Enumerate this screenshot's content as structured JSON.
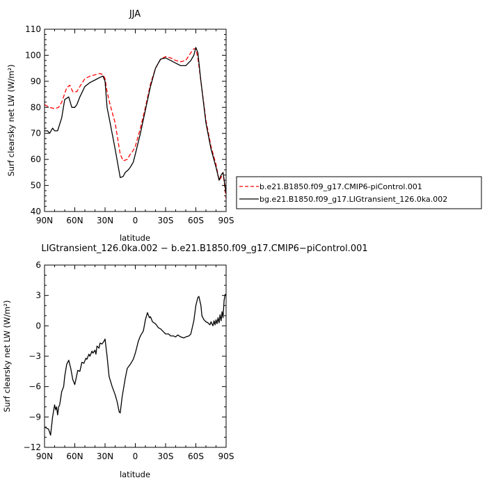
{
  "chart_data": [
    {
      "type": "line",
      "title": "JJA",
      "xlabel": "latitude",
      "ylabel": "Surf clearsky net LW (W/m²)",
      "xlim": [
        90,
        -90
      ],
      "ylim": [
        40,
        110
      ],
      "x_ticks": [
        90,
        60,
        30,
        0,
        -30,
        -60,
        -90
      ],
      "x_tick_labels": [
        "90N",
        "60N",
        "30N",
        "0",
        "30S",
        "60S",
        "90S"
      ],
      "y_ticks": [
        40,
        50,
        60,
        70,
        80,
        90,
        100,
        110
      ],
      "y_tick_labels": [
        "40",
        "50",
        "60",
        "70",
        "80",
        "90",
        "100",
        "110"
      ],
      "legend_position": "right",
      "series": [
        {
          "name": "b.e21.B1850.f09_g17.CMIP6-piControl.001",
          "color": "#ff0000",
          "dash": "dashed",
          "x": [
            90,
            85,
            80,
            76,
            73,
            68,
            65,
            62,
            58,
            55,
            50,
            45,
            40,
            35,
            32,
            30,
            28,
            25,
            20,
            15,
            12,
            8,
            5,
            2,
            0,
            -5,
            -10,
            -15,
            -20,
            -25,
            -30,
            -35,
            -40,
            -45,
            -50,
            -55,
            -58,
            -60,
            -62,
            -65,
            -70,
            -75,
            -80,
            -83,
            -85,
            -87,
            -90
          ],
          "y": [
            81,
            80,
            79.5,
            80,
            82,
            87.5,
            88.5,
            86,
            86,
            88,
            91,
            92,
            92.5,
            93,
            92.5,
            91,
            86,
            81,
            74,
            62,
            59.5,
            60,
            62,
            63.5,
            65,
            72,
            80,
            89,
            95,
            98.5,
            99.5,
            99,
            98,
            97.5,
            98,
            101,
            102.5,
            102.5,
            99,
            90,
            75,
            65,
            58,
            52,
            53,
            55,
            45
          ]
        },
        {
          "name": "bg.e21.B1850.f09_g17.LIGtransient_126.0ka.002",
          "color": "#000000",
          "dash": "solid",
          "x": [
            90,
            87,
            85,
            82,
            80,
            77,
            73,
            70,
            66,
            63,
            60,
            58,
            55,
            50,
            45,
            40,
            35,
            32,
            30,
            28,
            25,
            20,
            15,
            12,
            10,
            7,
            5,
            2,
            0,
            -5,
            -10,
            -15,
            -20,
            -25,
            -30,
            -35,
            -40,
            -45,
            -50,
            -55,
            -58,
            -60,
            -62,
            -65,
            -70,
            -75,
            -80,
            -83,
            -85,
            -87,
            -90
          ],
          "y": [
            71,
            71,
            70,
            72,
            71,
            71,
            76,
            83,
            84,
            80,
            80,
            81,
            84,
            88,
            89.5,
            90.5,
            91.5,
            92,
            90,
            80,
            74,
            64,
            53,
            53.5,
            55,
            56,
            57,
            59,
            62,
            70,
            79,
            88,
            95,
            98.5,
            99,
            98,
            97,
            96,
            96,
            98,
            100,
            103,
            101,
            90,
            74,
            64,
            57,
            52,
            54,
            55,
            47
          ]
        }
      ]
    },
    {
      "type": "line",
      "title": "LIGtransient_126.0ka.002 − b.e21.B1850.f09_g17.CMIP6−piControl.001",
      "xlabel": "latitude",
      "ylabel": "Surf clearsky net LW (W/m²)",
      "xlim": [
        90,
        -90
      ],
      "ylim": [
        -12,
        6
      ],
      "x_ticks": [
        90,
        60,
        30,
        0,
        -30,
        -60,
        -90
      ],
      "x_tick_labels": [
        "90N",
        "60N",
        "30N",
        "0",
        "30S",
        "60S",
        "90S"
      ],
      "y_ticks": [
        -12,
        -9,
        -6,
        -3,
        0,
        3,
        6
      ],
      "y_tick_labels": [
        "−12",
        "−9",
        "−6",
        "−3",
        "0",
        "3",
        "6"
      ],
      "series": [
        {
          "color": "#000000",
          "x": [
            90,
            86,
            84,
            82,
            80,
            79,
            78,
            77,
            76,
            75,
            73,
            71,
            70,
            68,
            66,
            64,
            62,
            60,
            57,
            55,
            53,
            51,
            49,
            48,
            46,
            45,
            43,
            42,
            40,
            39,
            38,
            36,
            35,
            33,
            31,
            30,
            28,
            26,
            23,
            20,
            18,
            16,
            15,
            13,
            10,
            8,
            5,
            2,
            0,
            -3,
            -5,
            -8,
            -10,
            -12,
            -14,
            -15,
            -17,
            -20,
            -23,
            -25,
            -28,
            -30,
            -33,
            -35,
            -38,
            -40,
            -42,
            -45,
            -48,
            -50,
            -53,
            -55,
            -58,
            -60,
            -62,
            -63,
            -65,
            -66,
            -68,
            -70,
            -72,
            -74,
            -75,
            -77,
            -78,
            -79,
            -80,
            -81,
            -82,
            -83,
            -84,
            -85,
            -86,
            -87,
            -88,
            -89,
            -90
          ],
          "y": [
            -10,
            -10.2,
            -10.8,
            -9,
            -7.8,
            -8.3,
            -8,
            -8.8,
            -8,
            -7.8,
            -6.5,
            -6,
            -5,
            -3.8,
            -3.4,
            -4.2,
            -5.3,
            -5.8,
            -4.4,
            -4.5,
            -3.6,
            -3.7,
            -3.2,
            -3.3,
            -2.8,
            -3,
            -2.5,
            -2.7,
            -2.4,
            -2.8,
            -2.0,
            -2.2,
            -1.7,
            -1.8,
            -1.5,
            -1.3,
            -3,
            -5,
            -6,
            -6.8,
            -7.5,
            -8.5,
            -8.6,
            -7,
            -5.2,
            -4.2,
            -3.8,
            -3.3,
            -2.7,
            -1.5,
            -1,
            -0.5,
            0.6,
            1.3,
            0.8,
            0.9,
            0.4,
            0.2,
            -0.2,
            -0.3,
            -0.6,
            -0.8,
            -0.8,
            -1.0,
            -1.0,
            -1.1,
            -0.9,
            -1.1,
            -1.2,
            -1.1,
            -1.0,
            -0.8,
            0.5,
            2.0,
            2.8,
            2.9,
            2.0,
            1.0,
            0.6,
            0.4,
            0.3,
            0.1,
            0.4,
            0.0,
            0.5,
            0.1,
            0.6,
            0.2,
            0.8,
            0.3,
            1.1,
            0.5,
            1.4,
            0.8,
            2.5,
            3.1,
            3.0
          ]
        }
      ]
    }
  ]
}
